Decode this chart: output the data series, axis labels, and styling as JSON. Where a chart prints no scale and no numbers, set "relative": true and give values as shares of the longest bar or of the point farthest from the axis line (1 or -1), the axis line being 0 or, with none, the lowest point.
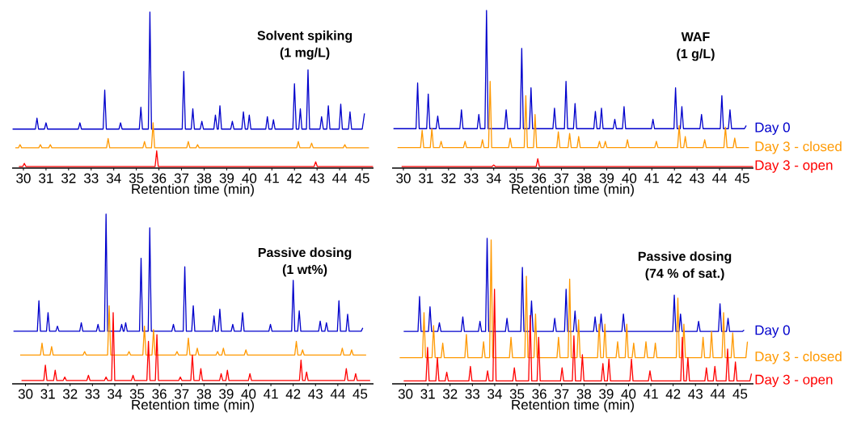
{
  "chart_data": [
    {
      "type": "line",
      "relative": true,
      "title": "Solvent spiking",
      "subtitle": "(1 mg/L)",
      "xlabel": "Retention time (min)",
      "xlim": [
        29.5,
        45.5
      ],
      "xticks": [
        30,
        31,
        32,
        33,
        34,
        35,
        36,
        37,
        38,
        39,
        40,
        41,
        42,
        43,
        44,
        45
      ],
      "tick_labels": "x",
      "series": [
        {
          "color": "#0000cc",
          "x": [
            29.52,
            30.53,
            30.6,
            30.67,
            30.93,
            31.0,
            31.07,
            32.43,
            32.5,
            32.57,
            33.53,
            33.6,
            33.67,
            34.23,
            34.3,
            34.37,
            35.13,
            35.2,
            35.27,
            35.53,
            35.6,
            35.67,
            37.03,
            37.1,
            37.17,
            37.43,
            37.5,
            37.57,
            37.83,
            37.9,
            37.97,
            38.43,
            38.5,
            38.58,
            38.63,
            38.7,
            38.77,
            39.18,
            39.25,
            39.32,
            39.67,
            39.74,
            39.82,
            39.93,
            40.0,
            40.07,
            40.73,
            40.8,
            40.87,
            41.0,
            41.07,
            41.14,
            41.93,
            42.0,
            42.08,
            42.19,
            42.26,
            42.33,
            42.53,
            42.6,
            42.67,
            43.13,
            43.2,
            43.28,
            43.43,
            43.5,
            43.57,
            43.98,
            44.05,
            44.12,
            44.39,
            44.46,
            44.53,
            45.0,
            45.1
          ],
          "values": [
            0.25,
            0.25,
            0.32,
            0.25,
            0.25,
            0.29,
            0.25,
            0.25,
            0.29,
            0.25,
            0.25,
            0.5,
            0.25,
            0.25,
            0.29,
            0.25,
            0.25,
            0.39,
            0.25,
            0.25,
            1.0,
            0.25,
            0.25,
            0.62,
            0.25,
            0.25,
            0.38,
            0.25,
            0.25,
            0.3,
            0.25,
            0.25,
            0.34,
            0.25,
            0.25,
            0.4,
            0.25,
            0.25,
            0.3,
            0.25,
            0.25,
            0.36,
            0.25,
            0.25,
            0.34,
            0.25,
            0.25,
            0.33,
            0.25,
            0.25,
            0.31,
            0.25,
            0.25,
            0.54,
            0.25,
            0.25,
            0.38,
            0.25,
            0.25,
            0.63,
            0.25,
            0.25,
            0.33,
            0.25,
            0.25,
            0.4,
            0.25,
            0.25,
            0.41,
            0.25,
            0.25,
            0.36,
            0.25,
            0.25,
            0.35
          ]
        },
        {
          "color": "#ff9900",
          "x": [
            29.64,
            29.78,
            29.85,
            29.92,
            30.68,
            30.75,
            30.82,
            31.12,
            31.19,
            31.26,
            33.68,
            33.75,
            33.82,
            35.29,
            35.36,
            35.43,
            35.67,
            35.74,
            35.81,
            37.23,
            37.3,
            37.37,
            37.64,
            37.71,
            37.78,
            42.1,
            42.17,
            42.24,
            42.69,
            42.76,
            42.83,
            44.16,
            44.23,
            44.3,
            45.3
          ],
          "values": [
            0.13,
            0.13,
            0.15,
            0.13,
            0.13,
            0.15,
            0.13,
            0.13,
            0.15,
            0.13,
            0.13,
            0.19,
            0.13,
            0.13,
            0.17,
            0.13,
            0.13,
            0.29,
            0.13,
            0.13,
            0.17,
            0.13,
            0.13,
            0.15,
            0.13,
            0.13,
            0.17,
            0.13,
            0.13,
            0.16,
            0.13,
            0.13,
            0.15,
            0.13,
            0.13
          ]
        },
        {
          "color": "#ff0000",
          "x": [
            29.8,
            29.97,
            30.04,
            30.11,
            35.83,
            35.9,
            35.97,
            42.87,
            42.94,
            43.01,
            45.48
          ],
          "values": [
            0.01,
            0.01,
            0.03,
            0.01,
            0.01,
            0.11,
            0.01,
            0.01,
            0.04,
            0.01,
            0.01
          ]
        }
      ]
    },
    {
      "type": "line",
      "relative": true,
      "title": "WAF",
      "subtitle": "(1 g/L)",
      "xlabel": "Retention time (min)",
      "xlim": [
        29.5,
        45.5
      ],
      "xticks": [
        30,
        31,
        32,
        33,
        34,
        35,
        36,
        37,
        38,
        39,
        40,
        41,
        42,
        43,
        44,
        45
      ],
      "tick_labels": "x",
      "series": [
        {
          "name": "Day 0",
          "color": "#0000cc",
          "x": [
            29.56,
            30.56,
            30.63,
            30.7,
            31.03,
            31.1,
            31.17,
            31.45,
            31.52,
            31.59,
            32.5,
            32.57,
            32.64,
            33.27,
            33.34,
            33.41,
            33.61,
            33.68,
            33.75,
            34.48,
            34.55,
            34.62,
            35.17,
            35.24,
            35.31,
            35.58,
            35.65,
            35.72,
            36.62,
            36.69,
            36.76,
            37.13,
            37.2,
            37.27,
            37.53,
            37.6,
            37.67,
            38.43,
            38.5,
            38.57,
            38.7,
            38.77,
            38.84,
            39.29,
            39.36,
            39.43,
            39.7,
            39.77,
            39.84,
            40.98,
            41.05,
            41.12,
            41.98,
            42.05,
            42.12,
            42.26,
            42.33,
            42.4,
            43.13,
            43.2,
            43.27,
            44.03,
            44.1,
            44.17,
            44.39,
            44.46,
            44.53,
            45.1,
            45.18
          ],
          "values": [
            0.25,
            0.25,
            0.54,
            0.25,
            0.25,
            0.47,
            0.25,
            0.25,
            0.33,
            0.25,
            0.25,
            0.37,
            0.25,
            0.25,
            0.34,
            0.25,
            0.25,
            1.0,
            0.25,
            0.25,
            0.37,
            0.25,
            0.25,
            0.76,
            0.25,
            0.25,
            0.51,
            0.25,
            0.25,
            0.38,
            0.25,
            0.25,
            0.55,
            0.25,
            0.25,
            0.41,
            0.25,
            0.25,
            0.36,
            0.25,
            0.25,
            0.38,
            0.25,
            0.25,
            0.31,
            0.25,
            0.25,
            0.39,
            0.25,
            0.25,
            0.31,
            0.25,
            0.25,
            0.51,
            0.25,
            0.25,
            0.39,
            0.25,
            0.25,
            0.34,
            0.25,
            0.25,
            0.46,
            0.25,
            0.25,
            0.37,
            0.25,
            0.25,
            0.27
          ]
        },
        {
          "name": "Day 3 - closed",
          "color": "#ff9900",
          "x": [
            29.74,
            30.76,
            30.83,
            30.9,
            31.19,
            31.26,
            31.33,
            31.6,
            31.67,
            31.74,
            32.66,
            32.73,
            32.8,
            33.43,
            33.5,
            33.57,
            33.77,
            33.84,
            33.91,
            34.66,
            34.73,
            34.8,
            35.35,
            35.42,
            35.49,
            35.76,
            35.83,
            35.9,
            36.79,
            36.86,
            36.93,
            37.29,
            37.36,
            37.43,
            37.69,
            37.76,
            37.83,
            38.61,
            38.68,
            38.75,
            38.87,
            38.94,
            39.01,
            39.85,
            39.92,
            39.99,
            41.13,
            41.2,
            41.27,
            42.14,
            42.21,
            42.28,
            42.41,
            42.48,
            42.55,
            43.27,
            43.34,
            43.41,
            44.19,
            44.26,
            44.33,
            44.6,
            44.67,
            44.74,
            45.3
          ],
          "values": [
            0.13,
            0.13,
            0.24,
            0.13,
            0.13,
            0.25,
            0.13,
            0.13,
            0.17,
            0.13,
            0.13,
            0.17,
            0.13,
            0.13,
            0.18,
            0.13,
            0.13,
            0.55,
            0.13,
            0.13,
            0.19,
            0.13,
            0.13,
            0.46,
            0.13,
            0.13,
            0.34,
            0.13,
            0.13,
            0.23,
            0.13,
            0.13,
            0.22,
            0.13,
            0.13,
            0.2,
            0.13,
            0.13,
            0.17,
            0.13,
            0.13,
            0.17,
            0.13,
            0.13,
            0.18,
            0.13,
            0.13,
            0.17,
            0.13,
            0.13,
            0.27,
            0.13,
            0.13,
            0.2,
            0.13,
            0.13,
            0.18,
            0.13,
            0.13,
            0.26,
            0.13,
            0.13,
            0.19,
            0.13,
            0.13
          ]
        },
        {
          "name": "Day 3 - open",
          "color": "#ff0000",
          "x": [
            29.92,
            33.93,
            34.0,
            34.07,
            35.88,
            35.95,
            36.02,
            45.48
          ],
          "values": [
            0.01,
            0.01,
            0.02,
            0.01,
            0.01,
            0.06,
            0.01,
            0.01
          ]
        }
      ]
    },
    {
      "type": "line",
      "relative": true,
      "title": "Passive dosing",
      "subtitle": "(1 wt%)",
      "xlabel": "Retention time (min)",
      "xlim": [
        29.4,
        45.6
      ],
      "xticks": [
        30,
        31,
        32,
        33,
        34,
        35,
        36,
        37,
        38,
        39,
        40,
        41,
        42,
        43,
        44,
        45
      ],
      "tick_labels": "x",
      "series": [
        {
          "color": "#0000cc",
          "x": [
            29.46,
            30.53,
            30.6,
            30.67,
            30.94,
            31.01,
            31.08,
            31.36,
            31.43,
            31.5,
            32.43,
            32.5,
            32.57,
            33.18,
            33.25,
            33.32,
            33.54,
            33.61,
            33.68,
            34.24,
            34.31,
            34.38,
            34.42,
            34.49,
            34.56,
            35.11,
            35.18,
            35.25,
            35.5,
            35.57,
            35.64,
            36.56,
            36.63,
            36.7,
            37.07,
            37.14,
            37.21,
            37.45,
            37.52,
            37.59,
            38.38,
            38.45,
            38.52,
            38.64,
            38.71,
            38.78,
            39.22,
            39.29,
            39.36,
            39.66,
            39.73,
            39.8,
            40.91,
            40.98,
            41.05,
            41.93,
            42.0,
            42.07,
            42.2,
            42.27,
            42.34,
            43.14,
            43.21,
            43.28,
            43.42,
            43.49,
            43.56,
            43.98,
            44.05,
            44.12,
            44.37,
            44.44,
            44.51,
            45.05,
            45.12
          ],
          "values": [
            0.31,
            0.31,
            0.49,
            0.31,
            0.31,
            0.42,
            0.31,
            0.31,
            0.34,
            0.31,
            0.31,
            0.36,
            0.31,
            0.31,
            0.35,
            0.31,
            0.31,
            1.0,
            0.31,
            0.31,
            0.35,
            0.31,
            0.31,
            0.36,
            0.31,
            0.31,
            0.74,
            0.31,
            0.31,
            0.92,
            0.31,
            0.31,
            0.35,
            0.31,
            0.31,
            0.69,
            0.31,
            0.31,
            0.46,
            0.31,
            0.31,
            0.4,
            0.31,
            0.31,
            0.44,
            0.31,
            0.31,
            0.35,
            0.31,
            0.31,
            0.42,
            0.31,
            0.31,
            0.35,
            0.31,
            0.31,
            0.61,
            0.31,
            0.31,
            0.43,
            0.31,
            0.31,
            0.37,
            0.31,
            0.31,
            0.36,
            0.31,
            0.31,
            0.49,
            0.31,
            0.31,
            0.41,
            0.31,
            0.31,
            0.33
          ]
        },
        {
          "color": "#ff9900",
          "x": [
            29.76,
            30.67,
            30.74,
            30.81,
            31.1,
            31.17,
            31.24,
            32.58,
            32.65,
            32.72,
            33.68,
            33.75,
            33.82,
            34.57,
            34.64,
            34.71,
            35.26,
            35.33,
            35.4,
            35.67,
            35.74,
            35.81,
            36.72,
            36.79,
            36.86,
            37.23,
            37.3,
            37.37,
            37.63,
            37.7,
            37.77,
            38.54,
            38.61,
            38.68,
            38.8,
            38.87,
            38.94,
            39.81,
            39.88,
            39.95,
            42.07,
            42.14,
            42.21,
            42.35,
            42.42,
            42.49,
            44.13,
            44.2,
            44.27,
            44.55,
            44.62,
            44.69,
            45.27
          ],
          "values": [
            0.17,
            0.17,
            0.24,
            0.17,
            0.17,
            0.22,
            0.17,
            0.17,
            0.19,
            0.17,
            0.17,
            0.46,
            0.17,
            0.17,
            0.19,
            0.17,
            0.17,
            0.34,
            0.17,
            0.17,
            0.32,
            0.17,
            0.17,
            0.19,
            0.17,
            0.17,
            0.27,
            0.17,
            0.17,
            0.21,
            0.17,
            0.17,
            0.19,
            0.17,
            0.17,
            0.21,
            0.17,
            0.17,
            0.2,
            0.17,
            0.17,
            0.25,
            0.17,
            0.17,
            0.2,
            0.17,
            0.17,
            0.21,
            0.17,
            0.17,
            0.2,
            0.17,
            0.17
          ]
        },
        {
          "color": "#ff0000",
          "x": [
            29.82,
            30.82,
            30.89,
            30.96,
            31.26,
            31.33,
            31.4,
            31.69,
            31.76,
            31.83,
            32.75,
            32.82,
            32.89,
            33.54,
            33.61,
            33.68,
            33.86,
            33.93,
            34.0,
            34.75,
            34.82,
            34.89,
            35.44,
            35.51,
            35.58,
            35.82,
            35.89,
            35.96,
            36.87,
            36.94,
            37.01,
            37.41,
            37.48,
            37.55,
            37.79,
            37.86,
            37.93,
            38.7,
            38.77,
            38.84,
            38.98,
            39.05,
            39.12,
            39.99,
            40.06,
            40.13,
            42.28,
            42.35,
            42.42,
            42.53,
            42.6,
            42.67,
            44.31,
            44.38,
            44.45,
            44.73,
            44.8,
            44.87,
            45.45
          ],
          "values": [
            0.02,
            0.02,
            0.11,
            0.02,
            0.02,
            0.08,
            0.02,
            0.02,
            0.04,
            0.02,
            0.02,
            0.05,
            0.02,
            0.02,
            0.04,
            0.02,
            0.02,
            0.42,
            0.02,
            0.02,
            0.05,
            0.02,
            0.02,
            0.25,
            0.02,
            0.02,
            0.29,
            0.02,
            0.02,
            0.04,
            0.02,
            0.02,
            0.17,
            0.02,
            0.02,
            0.09,
            0.02,
            0.02,
            0.06,
            0.02,
            0.02,
            0.08,
            0.02,
            0.02,
            0.06,
            0.02,
            0.02,
            0.14,
            0.02,
            0.02,
            0.07,
            0.02,
            0.02,
            0.09,
            0.02,
            0.02,
            0.06,
            0.02,
            0.02
          ]
        }
      ]
    },
    {
      "type": "line",
      "relative": true,
      "title": "Passive dosing",
      "subtitle": "(74 % of sat.)",
      "xlabel": "Retention time (min)",
      "xlim": [
        29.4,
        45.6
      ],
      "xticks": [
        30,
        31,
        32,
        33,
        34,
        35,
        36,
        37,
        38,
        39,
        40,
        41,
        42,
        43,
        44,
        45
      ],
      "tick_labels": "x",
      "series": [
        {
          "name": "Day 0",
          "color": "#0000cc",
          "x": [
            29.92,
            30.56,
            30.63,
            30.7,
            31.03,
            31.1,
            31.17,
            31.45,
            31.52,
            31.59,
            32.5,
            32.57,
            32.64,
            33.27,
            33.34,
            33.41,
            33.59,
            33.66,
            33.73,
            34.48,
            34.55,
            34.62,
            35.17,
            35.24,
            35.31,
            35.58,
            35.65,
            35.72,
            36.62,
            36.69,
            36.76,
            37.13,
            37.2,
            37.27,
            37.53,
            37.6,
            37.67,
            38.43,
            38.5,
            38.57,
            38.7,
            38.77,
            38.84,
            39.7,
            39.77,
            39.84,
            41.98,
            42.05,
            42.12,
            42.26,
            42.33,
            42.4,
            43.07,
            43.14,
            43.21,
            44.03,
            44.1,
            44.17,
            44.39,
            44.46,
            44.53,
            45.1,
            45.18
          ],
          "values": [
            0.36,
            0.36,
            0.6,
            0.36,
            0.36,
            0.53,
            0.36,
            0.36,
            0.42,
            0.36,
            0.36,
            0.46,
            0.36,
            0.36,
            0.43,
            0.36,
            0.36,
            1.0,
            0.36,
            0.36,
            0.45,
            0.36,
            0.36,
            0.8,
            0.36,
            0.36,
            0.57,
            0.36,
            0.36,
            0.45,
            0.36,
            0.36,
            0.65,
            0.36,
            0.36,
            0.5,
            0.36,
            0.36,
            0.46,
            0.36,
            0.36,
            0.48,
            0.36,
            0.36,
            0.48,
            0.36,
            0.36,
            0.61,
            0.36,
            0.36,
            0.48,
            0.36,
            0.36,
            0.43,
            0.36,
            0.36,
            0.55,
            0.36,
            0.36,
            0.45,
            0.36,
            0.36,
            0.37
          ]
        },
        {
          "name": "Day 3 - closed",
          "color": "#ff9900",
          "x": [
            29.74,
            30.76,
            30.83,
            30.9,
            31.19,
            31.26,
            31.33,
            31.6,
            31.67,
            31.74,
            32.66,
            32.73,
            32.8,
            33.43,
            33.5,
            33.57,
            33.77,
            33.84,
            33.91,
            34.66,
            34.73,
            34.8,
            35.35,
            35.42,
            35.49,
            35.76,
            35.83,
            35.9,
            36.79,
            36.86,
            36.93,
            37.29,
            37.36,
            37.43,
            37.69,
            37.76,
            37.83,
            38.61,
            38.68,
            38.75,
            38.87,
            38.94,
            39.01,
            39.44,
            39.51,
            39.58,
            39.85,
            39.92,
            39.99,
            40.16,
            40.23,
            40.3,
            40.71,
            40.78,
            40.85,
            41.13,
            41.2,
            41.27,
            42.14,
            42.21,
            42.28,
            42.41,
            42.48,
            42.55,
            43.27,
            43.34,
            43.41,
            43.65,
            43.72,
            43.79,
            44.19,
            44.26,
            44.33,
            44.6,
            44.67,
            44.74,
            45.26,
            45.33
          ],
          "values": [
            0.18,
            0.18,
            0.49,
            0.18,
            0.18,
            0.4,
            0.18,
            0.18,
            0.28,
            0.18,
            0.18,
            0.34,
            0.18,
            0.18,
            0.29,
            0.18,
            0.18,
            0.99,
            0.18,
            0.18,
            0.32,
            0.18,
            0.18,
            0.74,
            0.18,
            0.18,
            0.48,
            0.18,
            0.18,
            0.32,
            0.18,
            0.18,
            0.72,
            0.18,
            0.18,
            0.44,
            0.18,
            0.18,
            0.41,
            0.18,
            0.18,
            0.41,
            0.18,
            0.18,
            0.29,
            0.18,
            0.18,
            0.41,
            0.18,
            0.18,
            0.28,
            0.18,
            0.18,
            0.29,
            0.18,
            0.18,
            0.28,
            0.18,
            0.18,
            0.59,
            0.18,
            0.18,
            0.41,
            0.18,
            0.18,
            0.32,
            0.18,
            0.18,
            0.36,
            0.18,
            0.18,
            0.49,
            0.18,
            0.18,
            0.35,
            0.18,
            0.18,
            0.29
          ]
        },
        {
          "name": "Day 3 - open",
          "color": "#ff0000",
          "x": [
            29.92,
            30.92,
            30.99,
            31.06,
            31.36,
            31.43,
            31.5,
            31.78,
            31.85,
            31.92,
            32.84,
            32.91,
            32.98,
            33.61,
            33.68,
            33.75,
            33.92,
            33.99,
            34.06,
            34.81,
            34.88,
            34.95,
            35.52,
            35.59,
            35.66,
            35.9,
            35.97,
            36.04,
            36.95,
            37.02,
            37.09,
            37.48,
            37.55,
            37.62,
            37.86,
            37.93,
            38.0,
            38.78,
            38.85,
            38.92,
            39.05,
            39.12,
            39.19,
            40.06,
            40.13,
            40.2,
            40.89,
            40.96,
            41.03,
            42.34,
            42.41,
            42.48,
            42.59,
            42.66,
            42.73,
            43.42,
            43.49,
            43.56,
            43.8,
            43.87,
            43.94,
            44.37,
            44.44,
            44.51,
            44.72,
            44.79,
            44.86,
            45.44,
            45.51
          ],
          "values": [
            0.02,
            0.02,
            0.25,
            0.02,
            0.02,
            0.18,
            0.02,
            0.02,
            0.08,
            0.02,
            0.02,
            0.12,
            0.02,
            0.02,
            0.09,
            0.02,
            0.02,
            0.65,
            0.02,
            0.02,
            0.11,
            0.02,
            0.02,
            0.47,
            0.02,
            0.02,
            0.32,
            0.02,
            0.02,
            0.11,
            0.02,
            0.02,
            0.33,
            0.02,
            0.02,
            0.2,
            0.02,
            0.02,
            0.14,
            0.02,
            0.02,
            0.17,
            0.02,
            0.02,
            0.17,
            0.02,
            0.02,
            0.09,
            0.02,
            0.02,
            0.32,
            0.02,
            0.02,
            0.18,
            0.02,
            0.02,
            0.11,
            0.02,
            0.02,
            0.12,
            0.02,
            0.02,
            0.24,
            0.02,
            0.02,
            0.15,
            0.02,
            0.02,
            0.07
          ]
        }
      ]
    }
  ]
}
